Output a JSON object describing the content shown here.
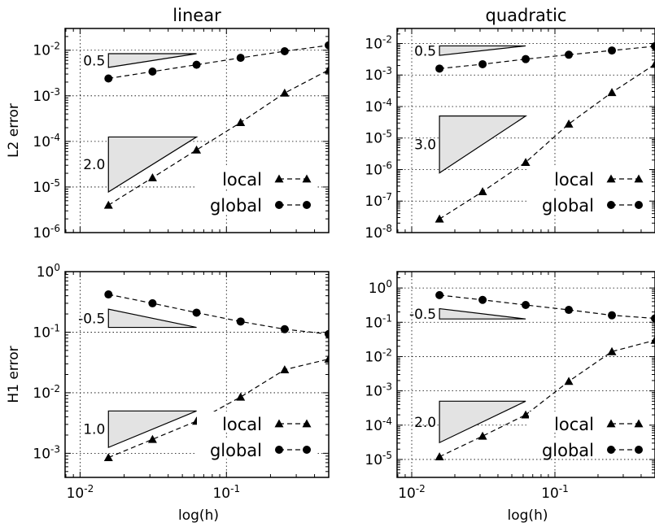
{
  "chart_data": [
    {
      "type": "line",
      "title": "linear",
      "xlabel": "",
      "ylabel": "L2 error",
      "xscale": "log",
      "yscale": "log",
      "xlim": [
        0.0079,
        0.5
      ],
      "ylim": [
        1e-06,
        0.03
      ],
      "grid": true,
      "legend_position": "lower-right",
      "x_ticks": [
        {
          "value": 0.01,
          "base": "10",
          "exp": "-2"
        },
        {
          "value": 0.1,
          "base": "10",
          "exp": "-1"
        }
      ],
      "y_ticks": [
        {
          "value": 1e-06,
          "base": "10",
          "exp": "-6"
        },
        {
          "value": 1e-05,
          "base": "10",
          "exp": "-5"
        },
        {
          "value": 0.0001,
          "base": "10",
          "exp": "-4"
        },
        {
          "value": 0.001,
          "base": "10",
          "exp": "-3"
        },
        {
          "value": 0.01,
          "base": "10",
          "exp": "-2"
        }
      ],
      "x": [
        0.015625,
        0.03125,
        0.0625,
        0.125,
        0.25,
        0.5
      ],
      "series": [
        {
          "name": "local",
          "marker": "triangle",
          "values": [
            4e-06,
            1.6e-05,
            6.5e-05,
            0.00026,
            0.00115,
            0.0037
          ]
        },
        {
          "name": "global",
          "marker": "circle",
          "values": [
            0.0024,
            0.0034,
            0.0048,
            0.0068,
            0.0095,
            0.0128
          ]
        }
      ],
      "slope_triangles": [
        {
          "label": "0.5",
          "x0": 0.015625,
          "x1": 0.0625,
          "y_low": 0.0042,
          "y_high": 0.0084
        },
        {
          "label": "2.0",
          "x0": 0.015625,
          "x1": 0.0625,
          "y_low": 7.8e-06,
          "y_high": 0.000125
        }
      ]
    },
    {
      "type": "line",
      "title": "quadratic",
      "xlabel": "",
      "ylabel": "",
      "xscale": "log",
      "yscale": "log",
      "xlim": [
        0.0079,
        0.5
      ],
      "ylim": [
        1e-08,
        0.03
      ],
      "grid": true,
      "legend_position": "lower-right",
      "x_ticks": [
        {
          "value": 0.01,
          "base": "10",
          "exp": "-2"
        },
        {
          "value": 0.1,
          "base": "10",
          "exp": "-1"
        }
      ],
      "y_ticks": [
        {
          "value": 1e-08,
          "base": "10",
          "exp": "-8"
        },
        {
          "value": 1e-07,
          "base": "10",
          "exp": "-7"
        },
        {
          "value": 1e-06,
          "base": "10",
          "exp": "-6"
        },
        {
          "value": 1e-05,
          "base": "10",
          "exp": "-5"
        },
        {
          "value": 0.0001,
          "base": "10",
          "exp": "-4"
        },
        {
          "value": 0.001,
          "base": "10",
          "exp": "-3"
        },
        {
          "value": 0.01,
          "base": "10",
          "exp": "-2"
        }
      ],
      "x": [
        0.015625,
        0.03125,
        0.0625,
        0.125,
        0.25,
        0.5
      ],
      "series": [
        {
          "name": "local",
          "marker": "triangle",
          "values": [
            2.7e-08,
            2e-07,
            1.7e-06,
            2.8e-05,
            0.00028,
            0.0022
          ]
        },
        {
          "name": "global",
          "marker": "circle",
          "values": [
            0.0016,
            0.0022,
            0.0032,
            0.0044,
            0.006,
            0.0082
          ]
        }
      ],
      "slope_triangles": [
        {
          "label": "0.5",
          "x0": 0.015625,
          "x1": 0.0625,
          "y_low": 0.0042,
          "y_high": 0.0084
        },
        {
          "label": "3.0",
          "x0": 0.015625,
          "x1": 0.0625,
          "y_low": 7.8e-07,
          "y_high": 5e-05
        }
      ]
    },
    {
      "type": "line",
      "title": "",
      "xlabel": "log(h)",
      "ylabel": "H1 error",
      "xscale": "log",
      "yscale": "log",
      "xlim": [
        0.0079,
        0.5
      ],
      "ylim": [
        0.0004,
        1.0
      ],
      "grid": true,
      "legend_position": "lower-right",
      "x_ticks": [
        {
          "value": 0.01,
          "base": "10",
          "exp": "-2"
        },
        {
          "value": 0.1,
          "base": "10",
          "exp": "-1"
        }
      ],
      "y_ticks": [
        {
          "value": 0.001,
          "base": "10",
          "exp": "-3"
        },
        {
          "value": 0.01,
          "base": "10",
          "exp": "-2"
        },
        {
          "value": 0.1,
          "base": "10",
          "exp": "-1"
        },
        {
          "value": 1,
          "base": "10",
          "exp": "0"
        }
      ],
      "x": [
        0.015625,
        0.03125,
        0.0625,
        0.125,
        0.25,
        0.5
      ],
      "series": [
        {
          "name": "local",
          "marker": "triangle",
          "values": [
            0.00085,
            0.0017,
            0.0034,
            0.0085,
            0.024,
            0.036
          ]
        },
        {
          "name": "global",
          "marker": "circle",
          "values": [
            0.42,
            0.3,
            0.21,
            0.15,
            0.112,
            0.093
          ]
        }
      ],
      "slope_triangles": [
        {
          "label": "-0.5",
          "x0": 0.015625,
          "x1": 0.0625,
          "y_low": 0.12,
          "y_high": 0.24
        },
        {
          "label": "1.0",
          "x0": 0.015625,
          "x1": 0.0625,
          "y_low": 0.00125,
          "y_high": 0.005
        }
      ]
    },
    {
      "type": "line",
      "title": "",
      "xlabel": "log(h)",
      "ylabel": "",
      "xscale": "log",
      "yscale": "log",
      "xlim": [
        0.0079,
        0.5
      ],
      "ylim": [
        3e-06,
        3.0
      ],
      "grid": true,
      "legend_position": "lower-right",
      "x_ticks": [
        {
          "value": 0.01,
          "base": "10",
          "exp": "-2"
        },
        {
          "value": 0.1,
          "base": "10",
          "exp": "-1"
        }
      ],
      "y_ticks": [
        {
          "value": 1e-05,
          "base": "10",
          "exp": "-5"
        },
        {
          "value": 0.0001,
          "base": "10",
          "exp": "-4"
        },
        {
          "value": 0.001,
          "base": "10",
          "exp": "-3"
        },
        {
          "value": 0.01,
          "base": "10",
          "exp": "-2"
        },
        {
          "value": 0.1,
          "base": "10",
          "exp": "-1"
        },
        {
          "value": 1,
          "base": "10",
          "exp": "0"
        }
      ],
      "x": [
        0.015625,
        0.03125,
        0.0625,
        0.125,
        0.25,
        0.5
      ],
      "series": [
        {
          "name": "local",
          "marker": "triangle",
          "values": [
            1.2e-05,
            4.8e-05,
            0.0002,
            0.0019,
            0.014,
            0.03
          ]
        },
        {
          "name": "global",
          "marker": "circle",
          "values": [
            0.62,
            0.45,
            0.32,
            0.23,
            0.16,
            0.13
          ]
        }
      ],
      "slope_triangles": [
        {
          "label": "-0.5",
          "x0": 0.015625,
          "x1": 0.0625,
          "y_low": 0.125,
          "y_high": 0.25
        },
        {
          "label": "2.0",
          "x0": 0.015625,
          "x1": 0.0625,
          "y_low": 3.1e-05,
          "y_high": 0.0005
        }
      ]
    }
  ]
}
